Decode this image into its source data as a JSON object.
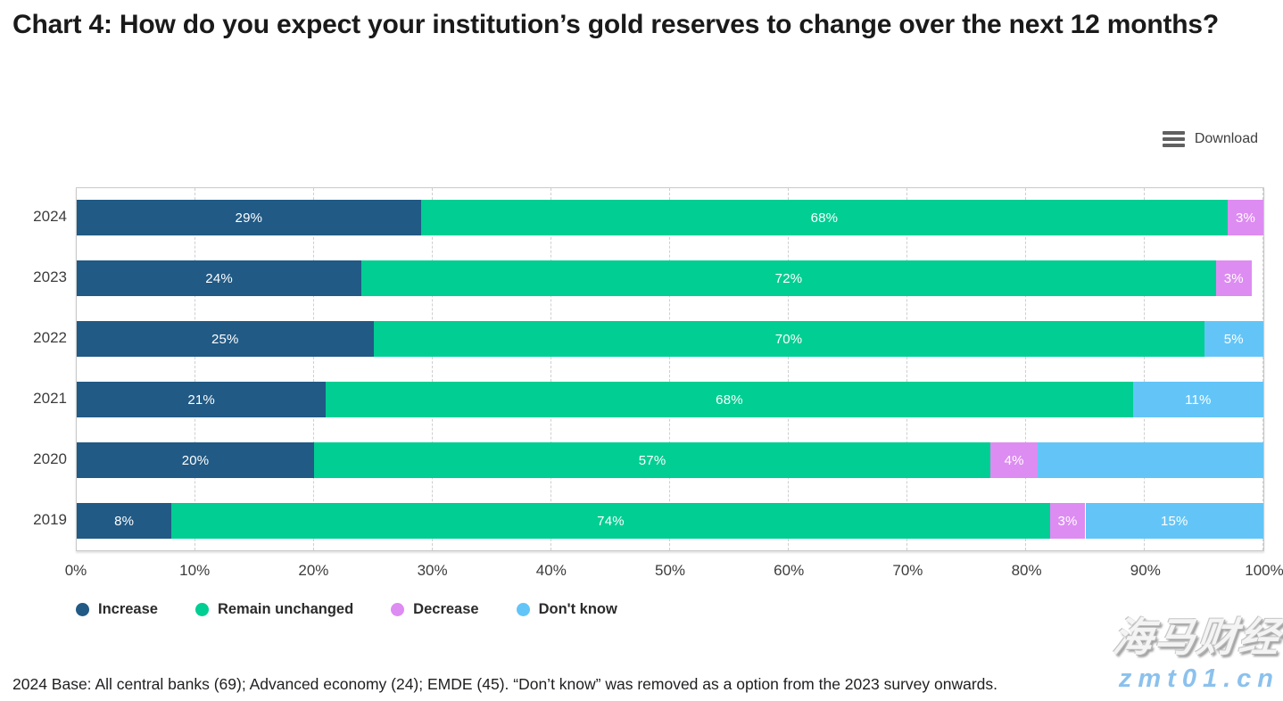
{
  "title": "Chart 4: How do you expect your institution’s gold reserves to change over the next 12 months?",
  "toolbar": {
    "download_label": "Download"
  },
  "chart_data": {
    "type": "bar",
    "orientation": "horizontal",
    "stacked": true,
    "title": "Chart 4: How do you expect your institution’s gold reserves to change over the next 12 months?",
    "xlabel": "",
    "ylabel": "",
    "xlim": [
      0,
      100
    ],
    "xticks": [
      0,
      10,
      20,
      30,
      40,
      50,
      60,
      70,
      80,
      90,
      100
    ],
    "xtick_suffix": "%",
    "grid": "vertical-dashed",
    "legend_position": "bottom",
    "categories": [
      "2024",
      "2023",
      "2022",
      "2021",
      "2020",
      "2019"
    ],
    "series": [
      {
        "name": "Increase",
        "color": "#215a85",
        "values": [
          29,
          24,
          25,
          21,
          20,
          8
        ]
      },
      {
        "name": "Remain unchanged",
        "color": "#00ce92",
        "values": [
          68,
          72,
          70,
          68,
          57,
          74
        ]
      },
      {
        "name": "Decrease",
        "color": "#dd8cf2",
        "values": [
          3,
          3,
          0,
          0,
          4,
          3
        ]
      },
      {
        "name": "Don't know",
        "color": "#63c5f7",
        "values": [
          0,
          0,
          5,
          11,
          19,
          15
        ]
      }
    ],
    "rows": [
      {
        "category": "2024",
        "segments": [
          {
            "series": "Increase",
            "value": 29,
            "label": "29%"
          },
          {
            "series": "Remain unchanged",
            "value": 68,
            "label": "68%"
          },
          {
            "series": "Decrease",
            "value": 3,
            "label": "3%"
          }
        ]
      },
      {
        "category": "2023",
        "segments": [
          {
            "series": "Increase",
            "value": 24,
            "label": "24%"
          },
          {
            "series": "Remain unchanged",
            "value": 72,
            "label": "72%"
          },
          {
            "series": "Decrease",
            "value": 3,
            "label": "3%"
          }
        ]
      },
      {
        "category": "2022",
        "segments": [
          {
            "series": "Increase",
            "value": 25,
            "label": "25%"
          },
          {
            "series": "Remain unchanged",
            "value": 70,
            "label": "70%"
          },
          {
            "series": "Don't know",
            "value": 5,
            "label": "5%"
          }
        ]
      },
      {
        "category": "2021",
        "segments": [
          {
            "series": "Increase",
            "value": 21,
            "label": "21%"
          },
          {
            "series": "Remain unchanged",
            "value": 68,
            "label": "68%"
          },
          {
            "series": "Don't know",
            "value": 11,
            "label": "11%"
          }
        ]
      },
      {
        "category": "2020",
        "segments": [
          {
            "series": "Increase",
            "value": 20,
            "label": "20%"
          },
          {
            "series": "Remain unchanged",
            "value": 57,
            "label": "57%"
          },
          {
            "series": "Decrease",
            "value": 4,
            "label": "4%"
          },
          {
            "series": "Don't know",
            "value": 19,
            "label": ""
          }
        ]
      },
      {
        "category": "2019",
        "segments": [
          {
            "series": "Increase",
            "value": 8,
            "label": "8%"
          },
          {
            "series": "Remain unchanged",
            "value": 74,
            "label": "74%"
          },
          {
            "series": "Decrease",
            "value": 3,
            "label": "3%"
          },
          {
            "series": "Don't know",
            "value": 15,
            "label": "15%"
          }
        ]
      }
    ]
  },
  "footnote": "2024 Base: All central banks (69); Advanced economy (24); EMDE (45). “Don’t know” was removed as a option from the 2023 survey onwards.",
  "watermark": {
    "line1": "海马财经",
    "line2": "zmt01.cn"
  }
}
